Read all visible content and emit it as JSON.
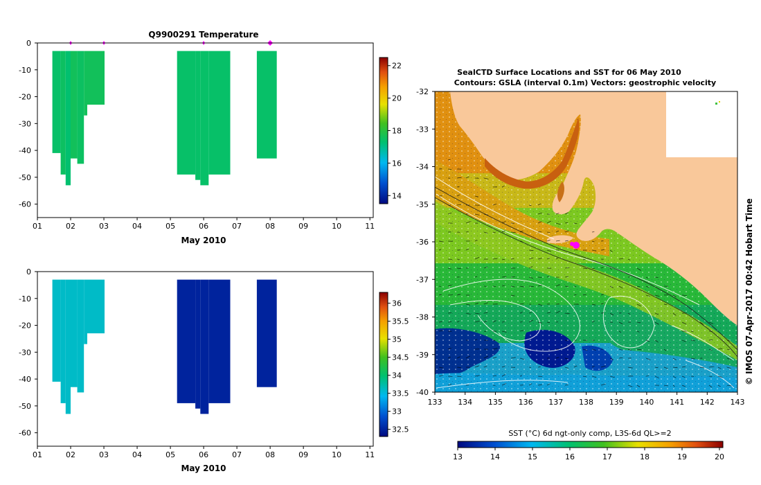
{
  "top_panel": {
    "title": "Q9900291  Temperature",
    "xlabel": "May 2010",
    "x_ticks": [
      "01",
      "02",
      "03",
      "04",
      "05",
      "06",
      "07",
      "08",
      "09",
      "10",
      "11"
    ],
    "y_ticks": [
      "0",
      "-10",
      "-20",
      "-30",
      "-40",
      "-50",
      "-60"
    ],
    "colorbar_ticks": [
      "22",
      "20",
      "18",
      "16",
      "14"
    ]
  },
  "bottom_panel": {
    "xlabel": "May 2010",
    "x_ticks": [
      "01",
      "02",
      "03",
      "04",
      "05",
      "06",
      "07",
      "08",
      "09",
      "10",
      "11"
    ],
    "y_ticks": [
      "0",
      "-10",
      "-20",
      "-30",
      "-40",
      "-50",
      "-60"
    ],
    "colorbar_ticks": [
      "36",
      "35.5",
      "35",
      "34.5",
      "34",
      "33.5",
      "33",
      "32.5"
    ]
  },
  "map_panel": {
    "title_line1": "SealCTD Surface Locations and SST for 06 May 2010",
    "title_line2": "Contours: GSLA (interval 0.1m) Vectors: geostrophic velocity",
    "lon_ticks": [
      "133",
      "134",
      "135",
      "136",
      "137",
      "138",
      "139",
      "140",
      "141",
      "142",
      "143"
    ],
    "lat_ticks": [
      "-32",
      "-33",
      "-34",
      "-35",
      "-36",
      "-37",
      "-38",
      "-39",
      "-40"
    ],
    "side_credit": "© IMOS 07-Apr-2017 00:42 Hobart Time",
    "colorbar_label": "SST (°C) 6d ngt-only comp, L3S-6d QL>=2",
    "colorbar_ticks": [
      "13",
      "14",
      "15",
      "16",
      "17",
      "18",
      "19",
      "20"
    ]
  },
  "colors": {
    "marker": "#ff00ff",
    "land": "#f9c89a",
    "temp_green": "#05b84a",
    "temp_teal": "#2ad28a",
    "sal_cyan": "#15c8f5",
    "sal_navy": "#000a80"
  },
  "chart_data": [
    {
      "type": "heatmap",
      "title": "Q9900291  Temperature",
      "xlabel": "May 2010",
      "ylabel": "",
      "xlim": [
        1,
        11.1
      ],
      "ylim": [
        -65,
        0
      ],
      "colorbar_range": [
        13.5,
        22.5
      ],
      "profile_times": [
        2.0,
        3.0,
        6.0,
        8.0
      ],
      "profiles": [
        {
          "x0": 1.45,
          "x1": 1.7,
          "bottom": -41,
          "value": 17.4
        },
        {
          "x0": 1.7,
          "x1": 1.85,
          "bottom": -49,
          "value": 17.5
        },
        {
          "x0": 1.85,
          "x1": 2.0,
          "bottom": -53,
          "value": 17.3
        },
        {
          "x0": 2.0,
          "x1": 2.2,
          "bottom": -43,
          "value": 17.6
        },
        {
          "x0": 2.2,
          "x1": 2.4,
          "bottom": -45,
          "value": 17.5
        },
        {
          "x0": 2.4,
          "x1": 2.5,
          "bottom": -27,
          "value": 17.6
        },
        {
          "x0": 2.5,
          "x1": 3.02,
          "bottom": -23,
          "value": 17.6
        },
        {
          "x0": 5.2,
          "x1": 5.75,
          "bottom": -49,
          "value": 17.4
        },
        {
          "x0": 5.75,
          "x1": 5.9,
          "bottom": -51,
          "value": 17.4
        },
        {
          "x0": 5.9,
          "x1": 6.15,
          "bottom": -53,
          "value": 17.4
        },
        {
          "x0": 6.15,
          "x1": 6.8,
          "bottom": -49,
          "value": 17.4
        },
        {
          "x0": 7.6,
          "x1": 8.2,
          "bottom": -43,
          "value": 17.4
        }
      ]
    },
    {
      "type": "heatmap",
      "title": "",
      "xlabel": "May 2010",
      "ylabel": "",
      "xlim": [
        1,
        11.1
      ],
      "ylim": [
        -65,
        0
      ],
      "colorbar_range": [
        32.3,
        36.3
      ],
      "profiles": [
        {
          "x0": 1.45,
          "x1": 1.7,
          "bottom": -41,
          "value": 33.6
        },
        {
          "x0": 1.7,
          "x1": 1.85,
          "bottom": -49,
          "value": 33.6
        },
        {
          "x0": 1.85,
          "x1": 2.0,
          "bottom": -53,
          "value": 33.6
        },
        {
          "x0": 2.0,
          "x1": 2.2,
          "bottom": -43,
          "value": 33.6
        },
        {
          "x0": 2.2,
          "x1": 2.4,
          "bottom": -45,
          "value": 33.6
        },
        {
          "x0": 2.4,
          "x1": 2.5,
          "bottom": -27,
          "value": 33.6
        },
        {
          "x0": 2.5,
          "x1": 3.02,
          "bottom": -23,
          "value": 33.6
        },
        {
          "x0": 5.2,
          "x1": 5.75,
          "bottom": -49,
          "value": 32.5
        },
        {
          "x0": 5.75,
          "x1": 5.9,
          "bottom": -51,
          "value": 32.5
        },
        {
          "x0": 5.9,
          "x1": 6.15,
          "bottom": -53,
          "value": 32.5
        },
        {
          "x0": 6.15,
          "x1": 6.8,
          "bottom": -49,
          "value": 32.5
        },
        {
          "x0": 7.6,
          "x1": 8.2,
          "bottom": -43,
          "value": 32.5
        }
      ]
    },
    {
      "type": "heatmap",
      "title": "SealCTD Surface Locations and SST for 06 May 2010",
      "subtitle": "Contours: GSLA (interval 0.1m) Vectors: geostrophic velocity",
      "xlabel": "",
      "ylabel": "",
      "xlim": [
        133,
        143
      ],
      "ylim": [
        -40,
        -32
      ],
      "colorbar_label": "SST (°C) 6d ngt-only comp, L3S-6d QL>=2",
      "colorbar_range": [
        13,
        20
      ],
      "seal_location": {
        "lon": 137.7,
        "lat": -36.1
      }
    }
  ]
}
